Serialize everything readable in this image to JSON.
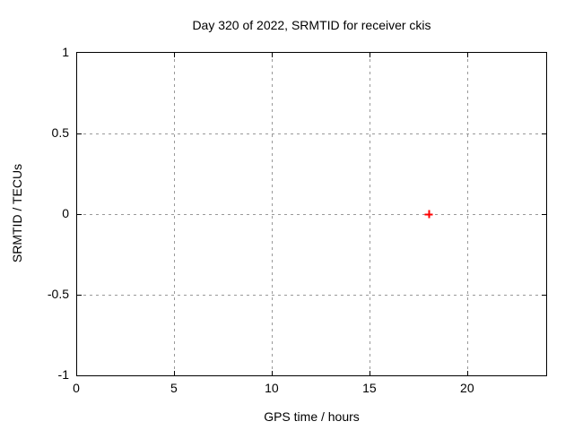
{
  "chart_data": {
    "type": "scatter",
    "title": "Day 320 of 2022, SRMTID for receiver ckis",
    "xlabel": "GPS time / hours",
    "ylabel": "SRMTID / TECUs",
    "xlim": [
      0,
      24
    ],
    "ylim": [
      -1,
      1
    ],
    "xticks": [
      0,
      5,
      10,
      15,
      20
    ],
    "xtick_labels": [
      "0",
      "5",
      "10",
      "15",
      "20"
    ],
    "yticks": [
      -1,
      -0.5,
      0,
      0.5,
      1
    ],
    "ytick_labels": [
      "-1",
      "-0.5",
      "0",
      "0.5",
      "1"
    ],
    "grid": true,
    "legend": false,
    "series": [
      {
        "name": "SRMTID",
        "marker": "plus",
        "color": "#ff0000",
        "points": [
          [
            18,
            0
          ]
        ]
      }
    ]
  },
  "colors": {
    "background": "#ffffff",
    "border": "#000000",
    "grid": "#999999",
    "text": "#000000",
    "marker": "#ff0000"
  }
}
